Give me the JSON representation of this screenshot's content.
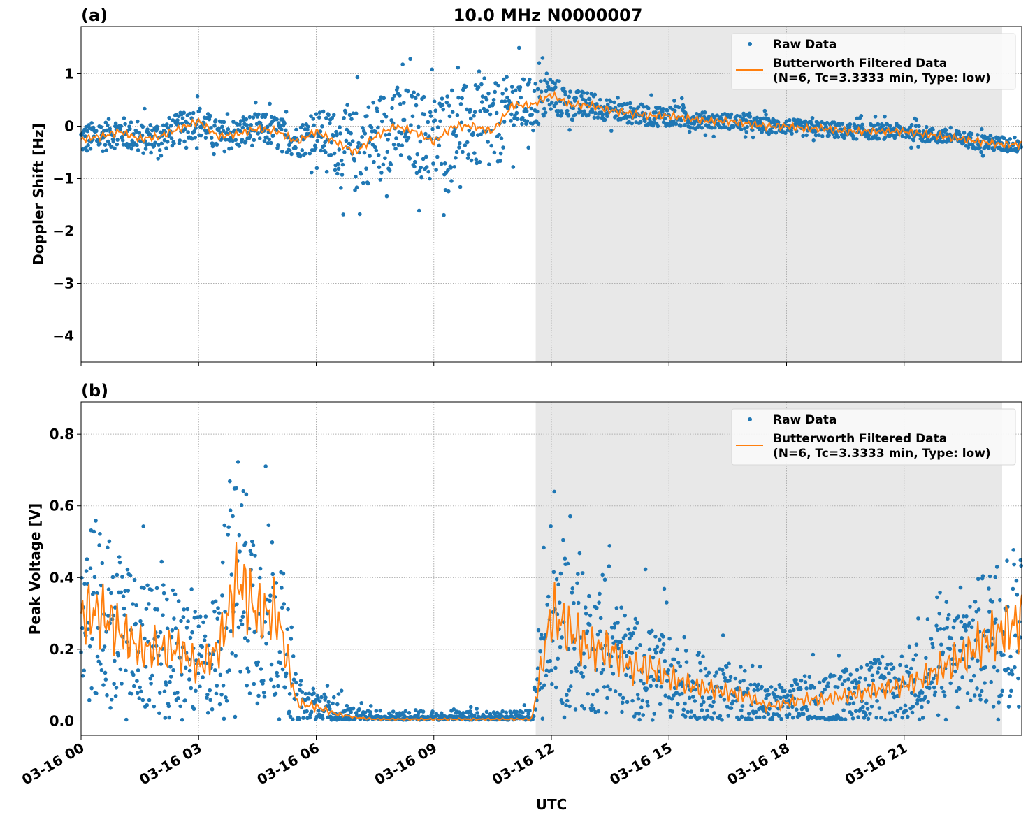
{
  "chart_data": [
    {
      "type": "scatter",
      "panel_label": "(a)",
      "title": "10.0 MHz N0000007",
      "xlabel": "",
      "ylabel": "Doppler Shift [Hz]",
      "xlim_hours": [
        0,
        24
      ],
      "ylim": [
        -4.5,
        1.9
      ],
      "yticks": [
        1,
        0,
        -1,
        -2,
        -3,
        -4
      ],
      "ytick_labels": [
        "1",
        "0",
        "−1",
        "−2",
        "−3",
        "−4"
      ],
      "grid": true,
      "legend_placement": "top-right",
      "shaded_region_hours": [
        11.6,
        23.5
      ],
      "series": [
        {
          "name": "Raw Data",
          "color": "#1f77b4",
          "kind": "points",
          "hours": [
            0,
            0.5,
            1,
            1.5,
            2,
            2.5,
            3,
            3.5,
            4,
            4.5,
            5,
            5.5,
            6,
            6.5,
            7,
            7.5,
            8,
            8.5,
            9,
            9.5,
            10,
            10.5,
            11,
            11.5,
            12,
            12.5,
            13,
            13.5,
            14,
            14.5,
            15,
            15.5,
            16,
            16.5,
            17,
            17.5,
            18,
            18.5,
            19,
            19.5,
            20,
            20.5,
            21,
            21.5,
            22,
            22.5,
            23,
            23.5,
            24
          ],
          "spread": [
            0.3,
            0.3,
            0.3,
            0.3,
            0.3,
            0.3,
            0.3,
            0.3,
            0.3,
            0.3,
            0.3,
            0.3,
            0.4,
            0.6,
            0.8,
            0.8,
            0.8,
            0.8,
            0.9,
            0.8,
            0.8,
            0.9,
            0.6,
            0.5,
            0.4,
            0.3,
            0.25,
            0.2,
            0.2,
            0.2,
            0.2,
            0.2,
            0.15,
            0.15,
            0.15,
            0.15,
            0.15,
            0.15,
            0.15,
            0.15,
            0.15,
            0.15,
            0.15,
            0.15,
            0.15,
            0.15,
            0.15,
            0.15,
            0.15
          ]
        },
        {
          "name": "Butterworth Filtered Data",
          "name_line2": "(N=6, Tc=3.3333 min, Type: low)",
          "color": "#ff7f0e",
          "kind": "line",
          "hours": [
            0,
            0.5,
            1,
            1.5,
            2,
            2.5,
            3,
            3.5,
            4,
            4.5,
            5,
            5.5,
            6,
            6.5,
            7,
            7.5,
            8,
            8.5,
            9,
            9.5,
            10,
            10.5,
            11,
            11.5,
            12,
            12.5,
            13,
            13.5,
            14,
            14.5,
            15,
            15.5,
            16,
            16.5,
            17,
            17.5,
            18,
            18.5,
            19,
            19.5,
            20,
            20.5,
            21,
            21.5,
            22,
            22.5,
            23,
            23.5,
            24
          ],
          "values": [
            -0.25,
            -0.2,
            -0.1,
            -0.25,
            -0.2,
            -0.05,
            0.1,
            -0.2,
            -0.15,
            -0.05,
            -0.1,
            -0.3,
            -0.1,
            -0.3,
            -0.5,
            -0.2,
            0.0,
            -0.1,
            -0.3,
            0.0,
            0.0,
            -0.1,
            0.4,
            0.4,
            0.6,
            0.4,
            0.4,
            0.3,
            0.25,
            0.2,
            0.2,
            0.15,
            0.1,
            0.1,
            0.05,
            0.0,
            0.0,
            -0.05,
            -0.05,
            -0.1,
            -0.1,
            -0.1,
            -0.1,
            -0.15,
            -0.2,
            -0.25,
            -0.3,
            -0.35,
            -0.35
          ]
        }
      ]
    },
    {
      "type": "scatter",
      "panel_label": "(b)",
      "xlabel": "UTC",
      "ylabel": "Peak Voltage [V]",
      "xlim_hours": [
        0,
        24
      ],
      "ylim": [
        -0.04,
        0.89
      ],
      "yticks": [
        0.0,
        0.2,
        0.4,
        0.6,
        0.8
      ],
      "ytick_labels": [
        "0.0",
        "0.2",
        "0.4",
        "0.6",
        "0.8"
      ],
      "xticks_hours": [
        0,
        3,
        6,
        9,
        12,
        15,
        18,
        21
      ],
      "xtick_labels": [
        "03-16 00",
        "03-16 03",
        "03-16 06",
        "03-16 09",
        "03-16 12",
        "03-16 15",
        "03-16 18",
        "03-16 21"
      ],
      "grid": true,
      "legend_placement": "top-right",
      "shaded_region_hours": [
        11.6,
        23.5
      ],
      "series": [
        {
          "name": "Raw Data",
          "color": "#1f77b4",
          "kind": "points"
        },
        {
          "name": "Butterworth Filtered Data",
          "name_line2": "(N=6, Tc=3.3333 min, Type: low)",
          "color": "#ff7f0e",
          "kind": "line",
          "hours": [
            0,
            0.5,
            1,
            1.5,
            2,
            2.5,
            3,
            3.5,
            4,
            4.5,
            5,
            5.5,
            6,
            6.5,
            7,
            7.5,
            8,
            8.5,
            9,
            9.5,
            10,
            10.5,
            11,
            11.5,
            12,
            12.5,
            13,
            13.5,
            14,
            14.5,
            15,
            15.5,
            16,
            16.5,
            17,
            17.5,
            18,
            18.5,
            19,
            19.5,
            20,
            20.5,
            21,
            21.5,
            22,
            22.5,
            23,
            23.5,
            24
          ],
          "values": [
            0.3,
            0.3,
            0.25,
            0.2,
            0.2,
            0.2,
            0.15,
            0.2,
            0.4,
            0.3,
            0.3,
            0.05,
            0.04,
            0.02,
            0.01,
            0.005,
            0.005,
            0.005,
            0.005,
            0.005,
            0.005,
            0.005,
            0.005,
            0.005,
            0.3,
            0.25,
            0.2,
            0.2,
            0.15,
            0.15,
            0.12,
            0.1,
            0.09,
            0.08,
            0.07,
            0.04,
            0.05,
            0.06,
            0.06,
            0.07,
            0.08,
            0.09,
            0.1,
            0.12,
            0.15,
            0.18,
            0.22,
            0.25,
            0.28
          ]
        }
      ]
    }
  ]
}
